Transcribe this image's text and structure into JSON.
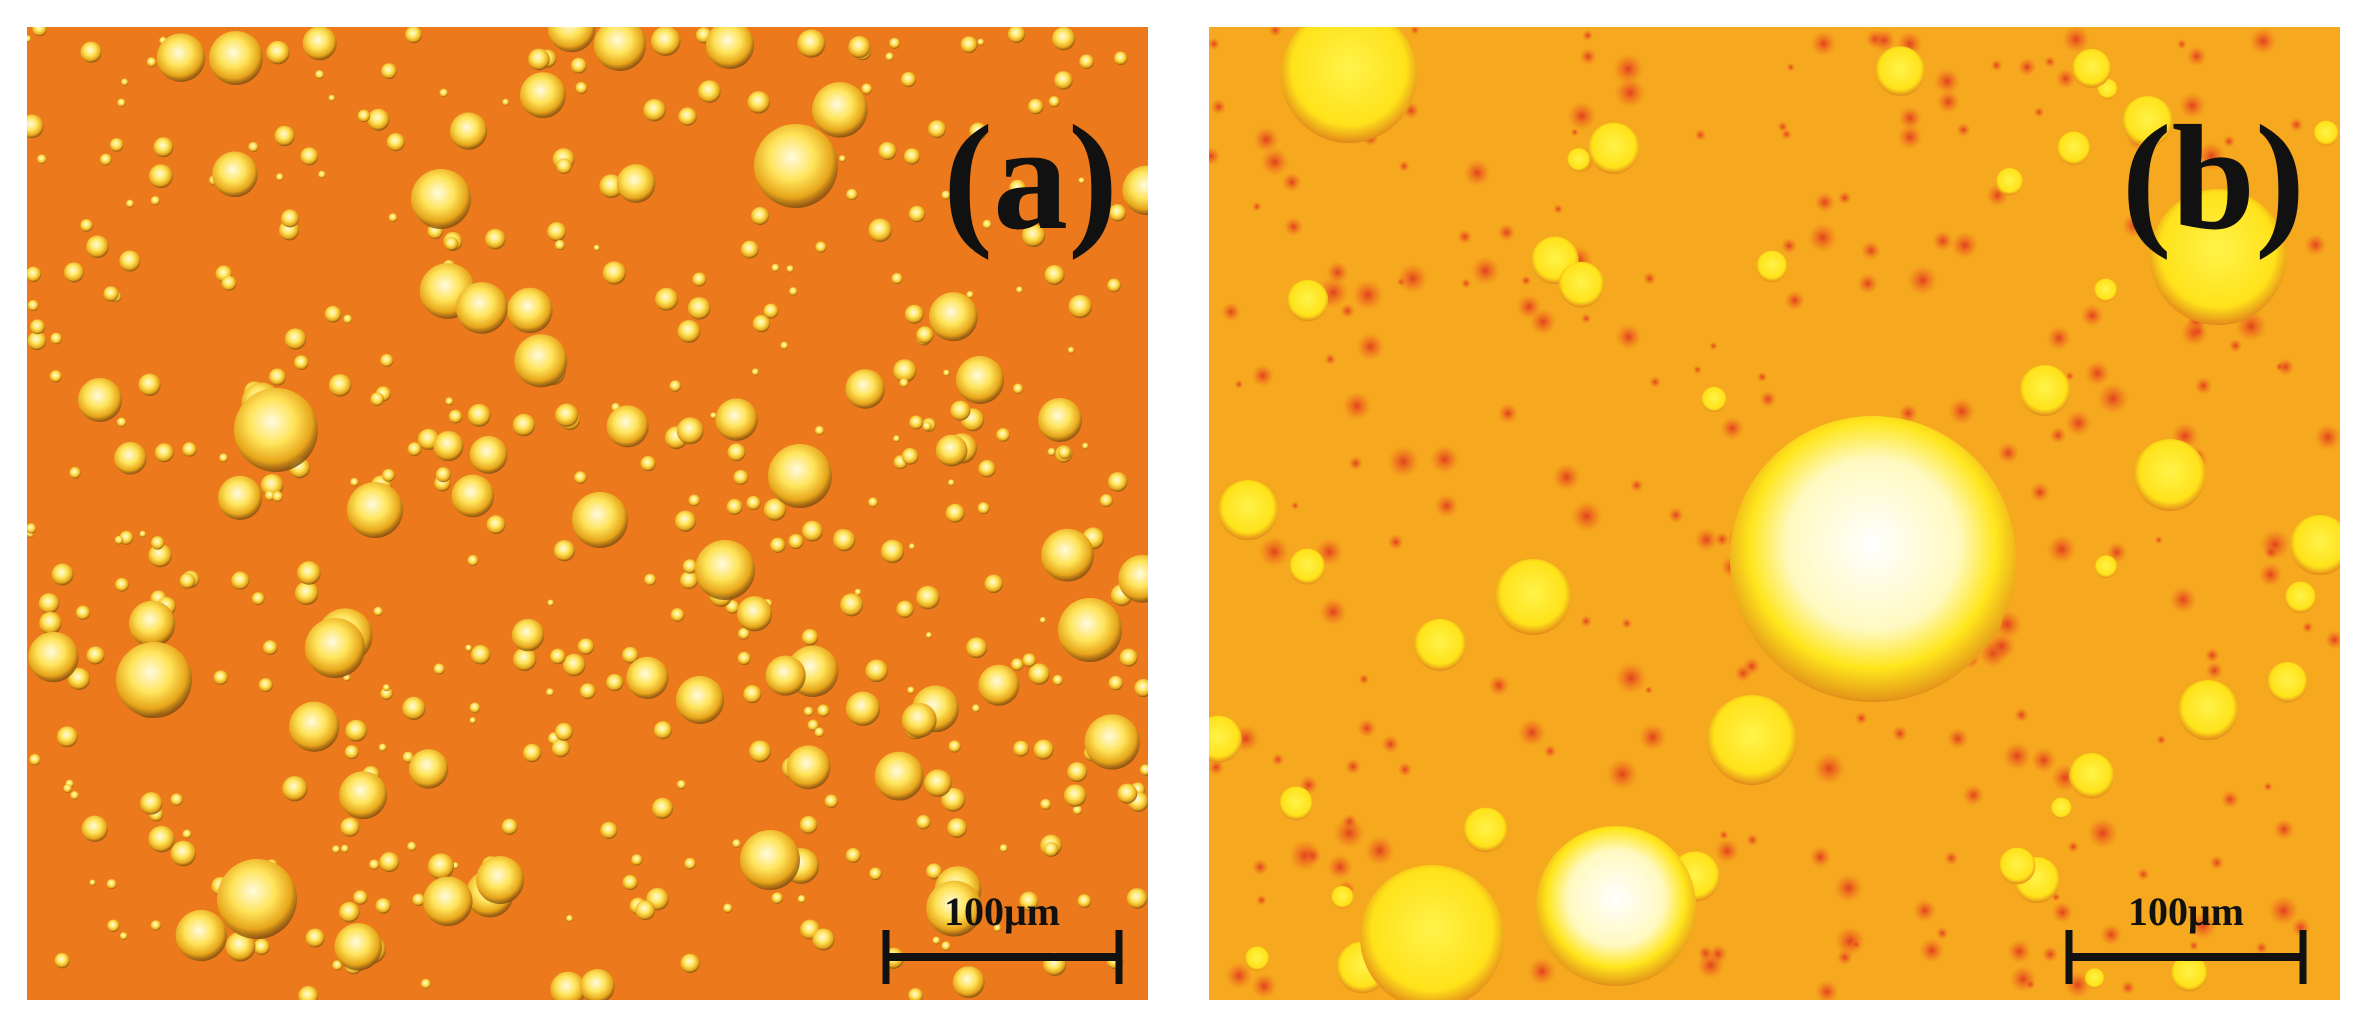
{
  "panels": [
    {
      "label": "(a)",
      "scale_bar": "100μm"
    },
    {
      "label": "(b)",
      "scale_bar": "100μm"
    }
  ]
}
